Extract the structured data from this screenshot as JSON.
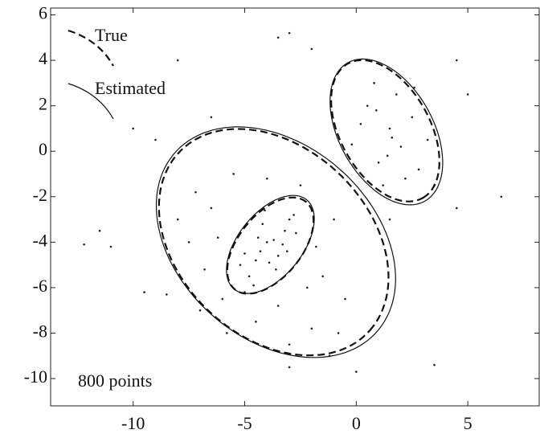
{
  "chart_data": {
    "type": "scatter",
    "annotation": "800 points",
    "xlim": [
      -13.7,
      8.2
    ],
    "ylim": [
      -11.2,
      6.3
    ],
    "xticks": [
      -10,
      -5,
      0,
      5
    ],
    "yticks": [
      -10,
      -8,
      -6,
      -4,
      -2,
      0,
      2,
      4,
      6
    ],
    "legend": "upper left",
    "points": {
      "color": "#222",
      "x": [
        -4.5,
        -3.2,
        -4.0,
        -3.5,
        -4.8,
        -3.0,
        -4.2,
        -3.6,
        -2.8,
        -5.0,
        -4.4,
        -3.9,
        -3.3,
        -4.6,
        -2.7,
        -4.1,
        -3.7,
        -5.2,
        -3.1,
        -4.3,
        -6.5,
        -1.5,
        -6.0,
        -2.0,
        -7.5,
        -5.5,
        -1.0,
        -3.0,
        -7.0,
        -0.5,
        -4.5,
        -6.8,
        -2.5,
        -8.0,
        -1.8,
        -5.8,
        -3.5,
        -7.2,
        -0.8,
        -4.0,
        -6.2,
        -2.2,
        -5.0,
        -8.5,
        -1.2,
        -3.0,
        0.5,
        1.5,
        2.0,
        1.0,
        2.5,
        0.8,
        1.8,
        2.8,
        0.2,
        3.2,
        1.2,
        2.2,
        1.6,
        0.9,
        3.5,
        -0.2,
        2.6,
        1.4,
        -12.2,
        -11.0,
        -11.5,
        -10.0,
        -9.5,
        -8.0,
        -3.5,
        -2.0,
        6.5,
        4.5,
        3.5,
        0.0,
        -6.5,
        -9.0,
        4.5,
        5.0,
        -3.0,
        1.5
      ],
      "y": [
        -4.8,
        -3.5,
        -4.0,
        -4.6,
        -5.5,
        -3.0,
        -3.2,
        -5.2,
        -2.8,
        -4.5,
        -3.8,
        -4.9,
        -4.1,
        -5.9,
        -3.6,
        -2.6,
        -3.9,
        -5.0,
        -4.4,
        -4.4,
        -2.5,
        -5.5,
        -6.5,
        -7.8,
        -4.0,
        -1.0,
        -3.0,
        -8.5,
        -7.0,
        -6.5,
        -7.5,
        -5.2,
        -1.5,
        -3.0,
        -4.2,
        -8.0,
        -6.8,
        -1.8,
        -8.0,
        -1.2,
        -3.8,
        -6.0,
        -6.2,
        -6.3,
        -9.0,
        -9.5,
        2.0,
        1.0,
        0.2,
        -0.5,
        1.5,
        3.0,
        2.5,
        -0.8,
        1.2,
        0.5,
        -1.5,
        -1.2,
        0.6,
        1.8,
        -1.5,
        0.3,
        2.8,
        -0.2,
        -4.1,
        -4.2,
        -3.5,
        1.0,
        -6.2,
        4.0,
        5.0,
        4.5,
        -2.0,
        -2.5,
        -9.4,
        -9.7,
        1.5,
        0.5,
        4.0,
        2.5,
        5.2,
        -3.0
      ]
    },
    "series": [
      {
        "name": "True",
        "color": "#111",
        "dash": "dashed",
        "ellipses": [
          {
            "cx": -3.7,
            "cy": -4.0,
            "rx": 5.8,
            "ry": 4.2,
            "angle": -42
          },
          {
            "cx": -3.85,
            "cy": -4.15,
            "rx": 2.5,
            "ry": 1.4,
            "angle": 50
          },
          {
            "cx": 1.3,
            "cy": 0.9,
            "rx": 3.4,
            "ry": 2.0,
            "angle": -60
          }
        ]
      },
      {
        "name": "Estimated",
        "color": "#111",
        "dash": "solid",
        "ellipses": [
          {
            "cx": -3.6,
            "cy": -4.0,
            "rx": 6.0,
            "ry": 4.3,
            "angle": -40
          },
          {
            "cx": -3.85,
            "cy": -4.1,
            "rx": 2.55,
            "ry": 1.42,
            "angle": 50
          },
          {
            "cx": 1.35,
            "cy": 0.85,
            "rx": 3.5,
            "ry": 2.1,
            "angle": -60
          }
        ]
      }
    ]
  }
}
